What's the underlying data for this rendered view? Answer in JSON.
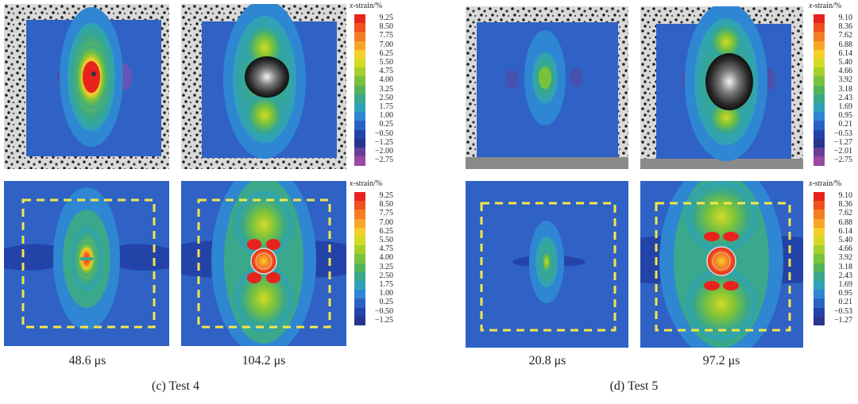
{
  "legend": {
    "title_italic": "x",
    "title_rest": "-strain/%",
    "test4_top": [
      "9.25",
      "8.50",
      "7.75",
      "7.00",
      "6.25",
      "5.50",
      "4.75",
      "4.00",
      "3.25",
      "2.50",
      "1.75",
      "1.00",
      "0.25",
      "−0.50",
      "−1.25",
      "−2.00",
      "−2.75"
    ],
    "test4_bottom": [
      "9.25",
      "8.50",
      "7.75",
      "7.00",
      "6.25",
      "5.50",
      "4.75",
      "4.00",
      "3.25",
      "2.50",
      "1.75",
      "1.00",
      "0.25",
      "−0.50",
      "−1.25"
    ],
    "test5_top": [
      "9.10",
      "8.36",
      "7.62",
      "6.88",
      "6.14",
      "5.40",
      "4.66",
      "3.92",
      "3.18",
      "2.43",
      "1.69",
      "0.95",
      "0.21",
      "−0.53",
      "−1.27",
      "−2.01",
      "−2.75"
    ],
    "test5_bottom": [
      "9.10",
      "8.36",
      "7.62",
      "6.88",
      "6.14",
      "5.40",
      "4.66",
      "3.92",
      "3.18",
      "2.43",
      "1.69",
      "0.95",
      "0.21",
      "−0.53",
      "−1.27"
    ],
    "colors17": [
      "#e8231d",
      "#f0501d",
      "#f47c22",
      "#f7a628",
      "#f5cf2a",
      "#d3da26",
      "#a6cf2b",
      "#79c23b",
      "#52b45a",
      "#3aa88a",
      "#2fa2b8",
      "#2f86d2",
      "#2a62c4",
      "#2443a9",
      "#28358f",
      "#6a3e97",
      "#9b48a3"
    ],
    "colors15": [
      "#e8231d",
      "#f0501d",
      "#f47c22",
      "#f7a628",
      "#f5cf2a",
      "#d3da26",
      "#a6cf2b",
      "#79c23b",
      "#52b45a",
      "#3aa88a",
      "#2fa2b8",
      "#2f86d2",
      "#2a62c4",
      "#2443a9",
      "#28358f"
    ]
  },
  "captions": {
    "t1": "48.6 μs",
    "t2": "104.2 μs",
    "t3": "20.8 μs",
    "t4": "97.2 μs",
    "test4": "(c) Test 4",
    "test5": "(d) Test 5"
  }
}
